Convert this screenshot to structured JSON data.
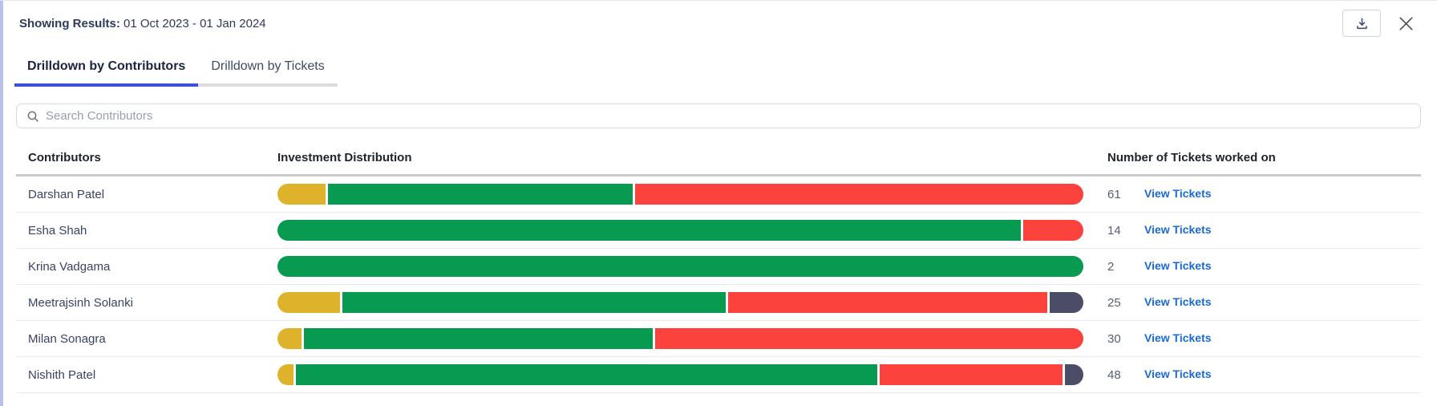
{
  "header": {
    "showing_label": "Showing Results:",
    "date_range": "01 Oct 2023 - 01 Jan 2024",
    "download_icon": "download-tray-icon",
    "close_icon": "close-x-icon"
  },
  "tabs": [
    {
      "label": "Drilldown by Contributors",
      "active": true
    },
    {
      "label": "Drilldown by Tickets",
      "active": false
    }
  ],
  "search": {
    "placeholder": "Search Contributors",
    "icon": "magnifier-icon",
    "value": ""
  },
  "table": {
    "columns": {
      "contributors": "Contributors",
      "distribution": "Investment Distribution",
      "tickets": "Number of Tickets worked on"
    },
    "view_tickets_label": "View Tickets",
    "rows": [
      {
        "name": "Darshan Patel",
        "tickets": "61",
        "segments": [
          {
            "color": "yellow",
            "pct": 6
          },
          {
            "color": "green",
            "pct": 38
          },
          {
            "color": "red",
            "pct": 56
          }
        ]
      },
      {
        "name": "Esha Shah",
        "tickets": "14",
        "segments": [
          {
            "color": "green",
            "pct": 92.5
          },
          {
            "color": "red",
            "pct": 7.5
          }
        ]
      },
      {
        "name": "Krina Vadgama",
        "tickets": "2",
        "segments": [
          {
            "color": "green",
            "pct": 100
          }
        ]
      },
      {
        "name": "Meetrajsinh Solanki",
        "tickets": "25",
        "segments": [
          {
            "color": "yellow",
            "pct": 7.8
          },
          {
            "color": "green",
            "pct": 48
          },
          {
            "color": "red",
            "pct": 40
          },
          {
            "color": "slate",
            "pct": 4.2
          }
        ]
      },
      {
        "name": "Milan Sonagra",
        "tickets": "30",
        "segments": [
          {
            "color": "yellow",
            "pct": 3
          },
          {
            "color": "green",
            "pct": 43.5
          },
          {
            "color": "red",
            "pct": 53.5
          }
        ]
      },
      {
        "name": "Nishith Patel",
        "tickets": "48",
        "segments": [
          {
            "color": "yellow",
            "pct": 2
          },
          {
            "color": "green",
            "pct": 72.8
          },
          {
            "color": "red",
            "pct": 22.9
          },
          {
            "color": "slate",
            "pct": 2.3
          }
        ]
      }
    ]
  },
  "colors": {
    "yellow": "#dfb22c",
    "green": "#089a50",
    "red": "#fb423c",
    "slate": "#4b4c66",
    "link_blue": "#1a6ad4",
    "tab_active_underline": "#3c4fd6"
  }
}
